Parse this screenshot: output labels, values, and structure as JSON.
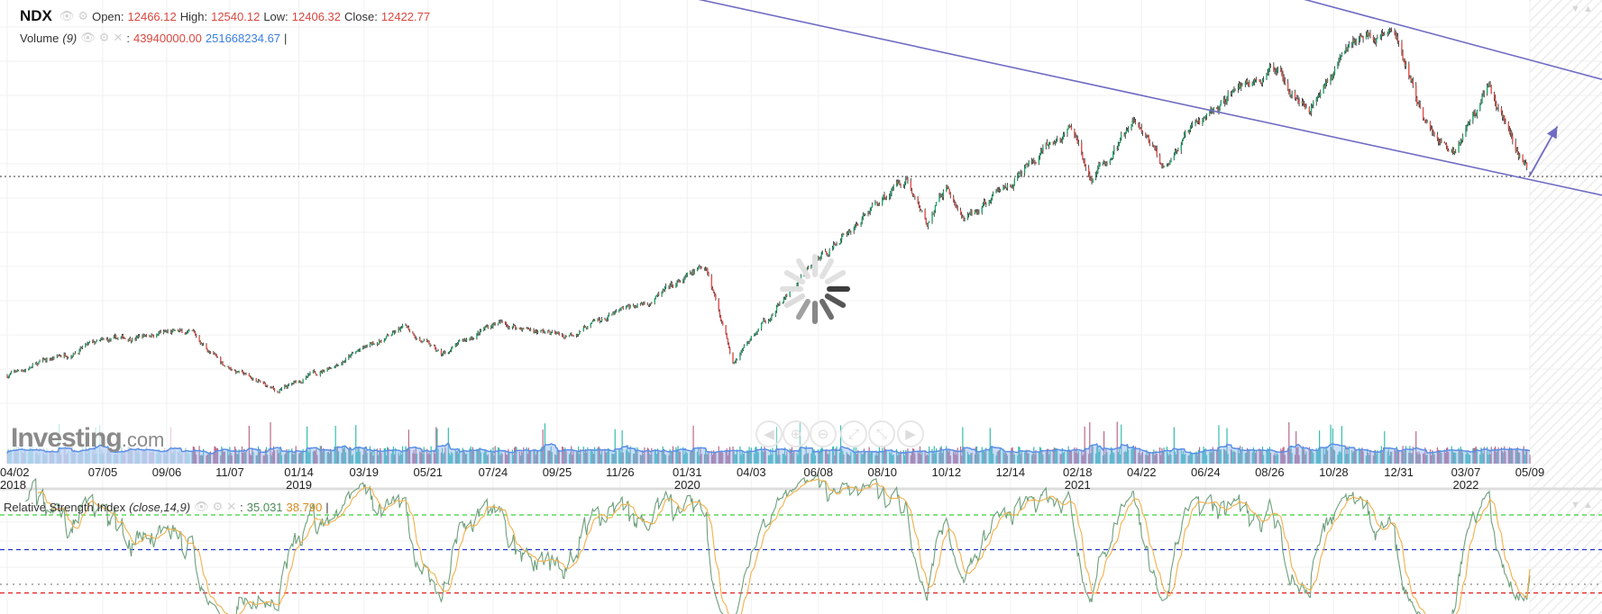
{
  "header": {
    "symbol": "NDX",
    "open_label": "Open:",
    "open": "12466.12",
    "high_label": "High:",
    "high": "12540.12",
    "low_label": "Low:",
    "low": "12406.32",
    "close_label": "Close:",
    "close": "12422.77"
  },
  "volume_legend": {
    "label": "Volume",
    "period": "(9)",
    "sep": ":",
    "value": "43940000.00",
    "ma_value": "251668234.67",
    "cursor": "|"
  },
  "rsi_legend": {
    "label": "Relative Strength Index",
    "params": "(close,14,9)",
    "sep": ":",
    "value": "35.031",
    "ma_value": "38.790",
    "cursor": "|"
  },
  "logo": {
    "main": "Investing",
    "suffix": ".com"
  },
  "zoom_buttons": [
    {
      "icon": "◀",
      "name": "scroll-left"
    },
    {
      "icon": "⊕",
      "name": "zoom-in"
    },
    {
      "icon": "⊖",
      "name": "zoom-out"
    },
    {
      "icon": "⤢",
      "name": "zoom-expand"
    },
    {
      "icon": "⤡",
      "name": "zoom-reset"
    },
    {
      "icon": "▶",
      "name": "scroll-right"
    }
  ],
  "x_axis": [
    {
      "label": "04/02",
      "year": "2018",
      "date": "2018-04-02"
    },
    {
      "label": "07/05",
      "date": "2018-07-05"
    },
    {
      "label": "09/06",
      "date": "2018-09-06"
    },
    {
      "label": "11/07",
      "date": "2018-11-07"
    },
    {
      "label": "01/14",
      "year": "2019",
      "date": "2019-01-14"
    },
    {
      "label": "03/19",
      "date": "2019-03-19"
    },
    {
      "label": "05/21",
      "date": "2019-05-21"
    },
    {
      "label": "07/24",
      "date": "2019-07-24"
    },
    {
      "label": "09/25",
      "date": "2019-09-25"
    },
    {
      "label": "11/26",
      "date": "2019-11-26"
    },
    {
      "label": "01/31",
      "year": "2020",
      "date": "2020-01-31"
    },
    {
      "label": "04/03",
      "date": "2020-04-03"
    },
    {
      "label": "06/08",
      "date": "2020-06-08"
    },
    {
      "label": "08/10",
      "date": "2020-08-10"
    },
    {
      "label": "10/12",
      "date": "2020-10-12"
    },
    {
      "label": "12/14",
      "date": "2020-12-14"
    },
    {
      "label": "02/18",
      "year": "2021",
      "date": "2021-02-18"
    },
    {
      "label": "04/22",
      "date": "2021-04-22"
    },
    {
      "label": "06/24",
      "date": "2021-06-24"
    },
    {
      "label": "08/26",
      "date": "2021-08-26"
    },
    {
      "label": "10/28",
      "date": "2021-10-28"
    },
    {
      "label": "12/31",
      "date": "2021-12-31"
    },
    {
      "label": "03/07",
      "year": "2022",
      "date": "2022-03-07"
    },
    {
      "label": "05/09",
      "date": "2022-05-09"
    }
  ],
  "colors": {
    "up": "#1fa86b",
    "down": "#e0514c",
    "trendline": "#6f6cc4",
    "rsi": "#6ea07c",
    "rsi_ma": "#f2b04a",
    "vol_ma": "#5b8fe6"
  },
  "chart_data": {
    "type": "candlestick",
    "title": "NDX",
    "xlabel": "",
    "ylabel": "",
    "x_range": [
      "2018-04-02",
      "2022-05-09"
    ],
    "ylim": [
      5400,
      17800
    ],
    "price_anchors": [
      [
        "2018-04-02",
        6400
      ],
      [
        "2018-06-20",
        7300
      ],
      [
        "2018-08-29",
        7700
      ],
      [
        "2018-10-01",
        7650
      ],
      [
        "2018-10-29",
        6800
      ],
      [
        "2018-12-24",
        5900
      ],
      [
        "2019-04-30",
        7850
      ],
      [
        "2019-06-03",
        7000
      ],
      [
        "2019-07-26",
        8000
      ],
      [
        "2019-10-02",
        7600
      ],
      [
        "2019-12-31",
        8730
      ],
      [
        "2020-02-19",
        9700
      ],
      [
        "2020-03-16",
        6900
      ],
      [
        "2020-06-08",
        9900
      ],
      [
        "2020-09-02",
        12420
      ],
      [
        "2020-09-23",
        10900
      ],
      [
        "2020-10-12",
        12100
      ],
      [
        "2020-10-30",
        11000
      ],
      [
        "2021-02-12",
        13800
      ],
      [
        "2021-03-04",
        12300
      ],
      [
        "2021-04-16",
        14000
      ],
      [
        "2021-05-12",
        12800
      ],
      [
        "2021-07-26",
        15100
      ],
      [
        "2021-09-07",
        15600
      ],
      [
        "2021-10-04",
        14500
      ],
      [
        "2021-11-19",
        16600
      ],
      [
        "2021-12-27",
        16700
      ],
      [
        "2022-01-27",
        13900
      ],
      [
        "2022-02-23",
        13100
      ],
      [
        "2022-03-29",
        15200
      ],
      [
        "2022-05-09",
        12423
      ]
    ],
    "last_bar": {
      "date": "2022-05-09",
      "open": 12466.12,
      "high": 12540.12,
      "low": 12406.32,
      "close": 12422.77
    },
    "horizontal_line": 12422.77,
    "trendlines": [
      {
        "name": "lower-channel",
        "from": [
          "2020-01-31",
          17800
        ],
        "to": [
          "2022-05-09",
          12300
        ]
      },
      {
        "name": "upper-channel",
        "from": [
          "2021-09-20",
          17800
        ],
        "to": [
          "2022-05-09",
          15900
        ]
      }
    ],
    "arrow": {
      "from": [
        "2022-05-09",
        12422
      ],
      "to": [
        "2022-06-05",
        13900
      ]
    },
    "volume": {
      "last": 43940000.0,
      "ma9": 251668234.67
    },
    "rsi": {
      "period": 14,
      "ma_period": 9,
      "last": 35.031,
      "ma_last": 38.79,
      "levels": [
        70,
        50,
        30,
        25
      ]
    }
  }
}
